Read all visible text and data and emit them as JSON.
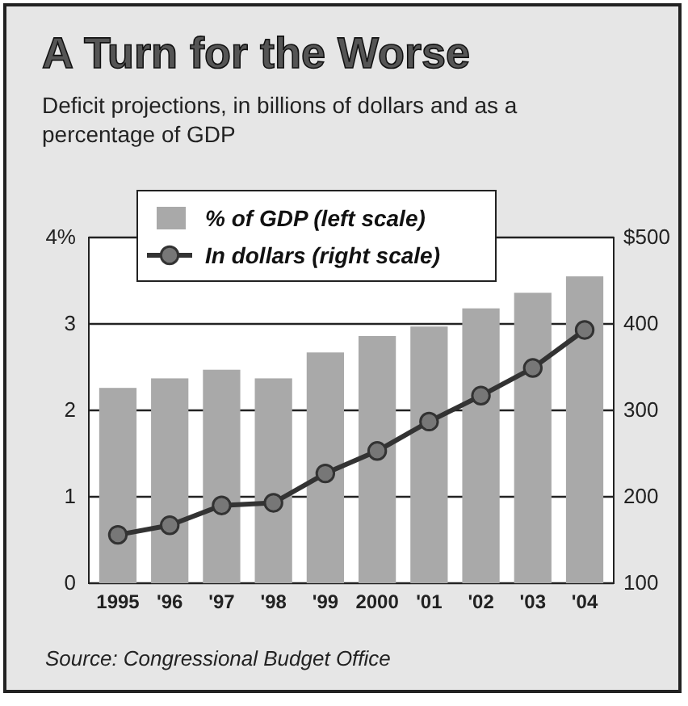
{
  "chart_data": {
    "type": "bar",
    "title": "A Turn for the Worse",
    "subtitle": "Deficit projections, in billions of dollars and as a percentage of GDP",
    "categories": [
      "1995",
      "'96",
      "'97",
      "'98",
      "'99",
      "2000",
      "'01",
      "'02",
      "'03",
      "'04"
    ],
    "series": [
      {
        "name": "% of GDP (left scale)",
        "color": "#a9a9a9",
        "values": [
          2.26,
          2.37,
          2.47,
          2.37,
          2.67,
          2.86,
          2.97,
          3.18,
          3.36,
          3.55
        ]
      },
      {
        "name": "In dollars (right scale)",
        "type": "line",
        "axis": "y2",
        "color": "#333333",
        "marker": "circle",
        "values": [
          156,
          167,
          190,
          193,
          227,
          253,
          287,
          317,
          349,
          393
        ]
      }
    ],
    "ylim": [
      0,
      4
    ],
    "yticks": [
      0,
      1,
      2,
      3,
      {
        "value": 4,
        "label": "4%"
      }
    ],
    "y2lim": [
      100,
      500
    ],
    "y2ticks": [
      100,
      200,
      300,
      400,
      {
        "value": 500,
        "label": "$500"
      }
    ],
    "grid": "y",
    "legend": "top",
    "annotations": [
      "Source: Congressional Budget Office"
    ]
  }
}
